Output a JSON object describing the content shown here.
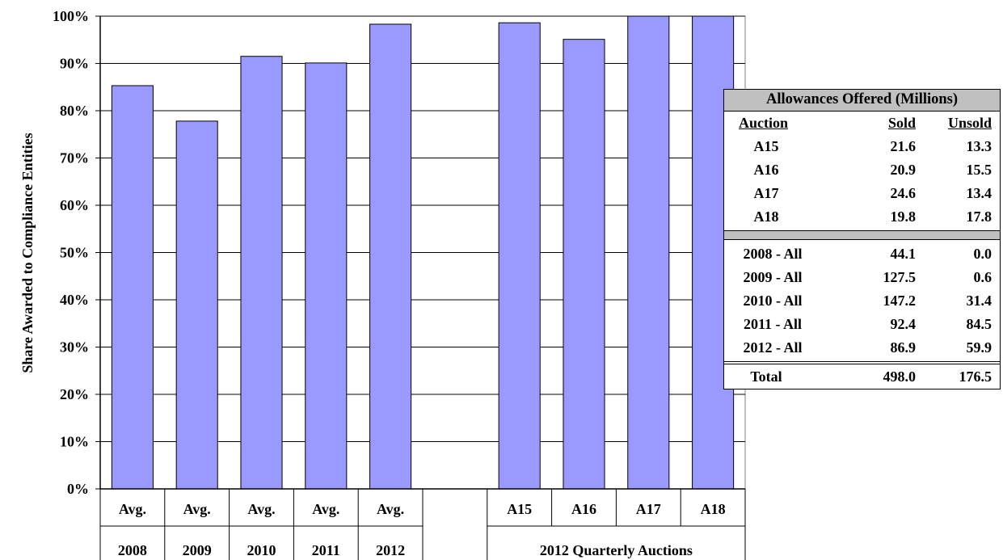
{
  "chart_data": {
    "type": "bar",
    "ylabel": "Share Awarded to Compliance Entities",
    "ylim": [
      0,
      100
    ],
    "yticks": [
      "0%",
      "10%",
      "20%",
      "30%",
      "40%",
      "50%",
      "60%",
      "70%",
      "80%",
      "90%",
      "100%"
    ],
    "grid": true,
    "categories": [
      {
        "line1": "Avg.",
        "line2": "2008"
      },
      {
        "line1": "Avg.",
        "line2": "2009"
      },
      {
        "line1": "Avg.",
        "line2": "2010"
      },
      {
        "line1": "Avg.",
        "line2": "2011"
      },
      {
        "line1": "Avg.",
        "line2": "2012"
      },
      {
        "line1": "",
        "line2": ""
      },
      {
        "line1": "A15",
        "line2": ""
      },
      {
        "line1": "A16",
        "line2": ""
      },
      {
        "line1": "A17",
        "line2": ""
      },
      {
        "line1": "A18",
        "line2": ""
      }
    ],
    "group_label": "2012 Quarterly Auctions",
    "values": [
      85.3,
      77.8,
      91.5,
      90.1,
      98.3,
      null,
      98.6,
      95.1,
      100,
      100
    ],
    "bar_color": "#9999ff"
  },
  "table": {
    "title": "Allowances Offered (Millions)",
    "headers": {
      "auction": "Auction",
      "sold": "Sold",
      "unsold": "Unsold"
    },
    "auction_rows": [
      {
        "name": "A15",
        "sold": "21.6",
        "unsold": "13.3"
      },
      {
        "name": "A16",
        "sold": "20.9",
        "unsold": "15.5"
      },
      {
        "name": "A17",
        "sold": "24.6",
        "unsold": "13.4"
      },
      {
        "name": "A18",
        "sold": "19.8",
        "unsold": "17.8"
      }
    ],
    "year_rows": [
      {
        "name": "2008 - All",
        "sold": "44.1",
        "unsold": "0.0"
      },
      {
        "name": "2009 - All",
        "sold": "127.5",
        "unsold": "0.6"
      },
      {
        "name": "2010 - All",
        "sold": "147.2",
        "unsold": "31.4"
      },
      {
        "name": "2011 - All",
        "sold": "92.4",
        "unsold": "84.5"
      },
      {
        "name": "2012 - All",
        "sold": "86.9",
        "unsold": "59.9"
      }
    ],
    "total": {
      "name": "Total",
      "sold": "498.0",
      "unsold": "176.5"
    }
  }
}
